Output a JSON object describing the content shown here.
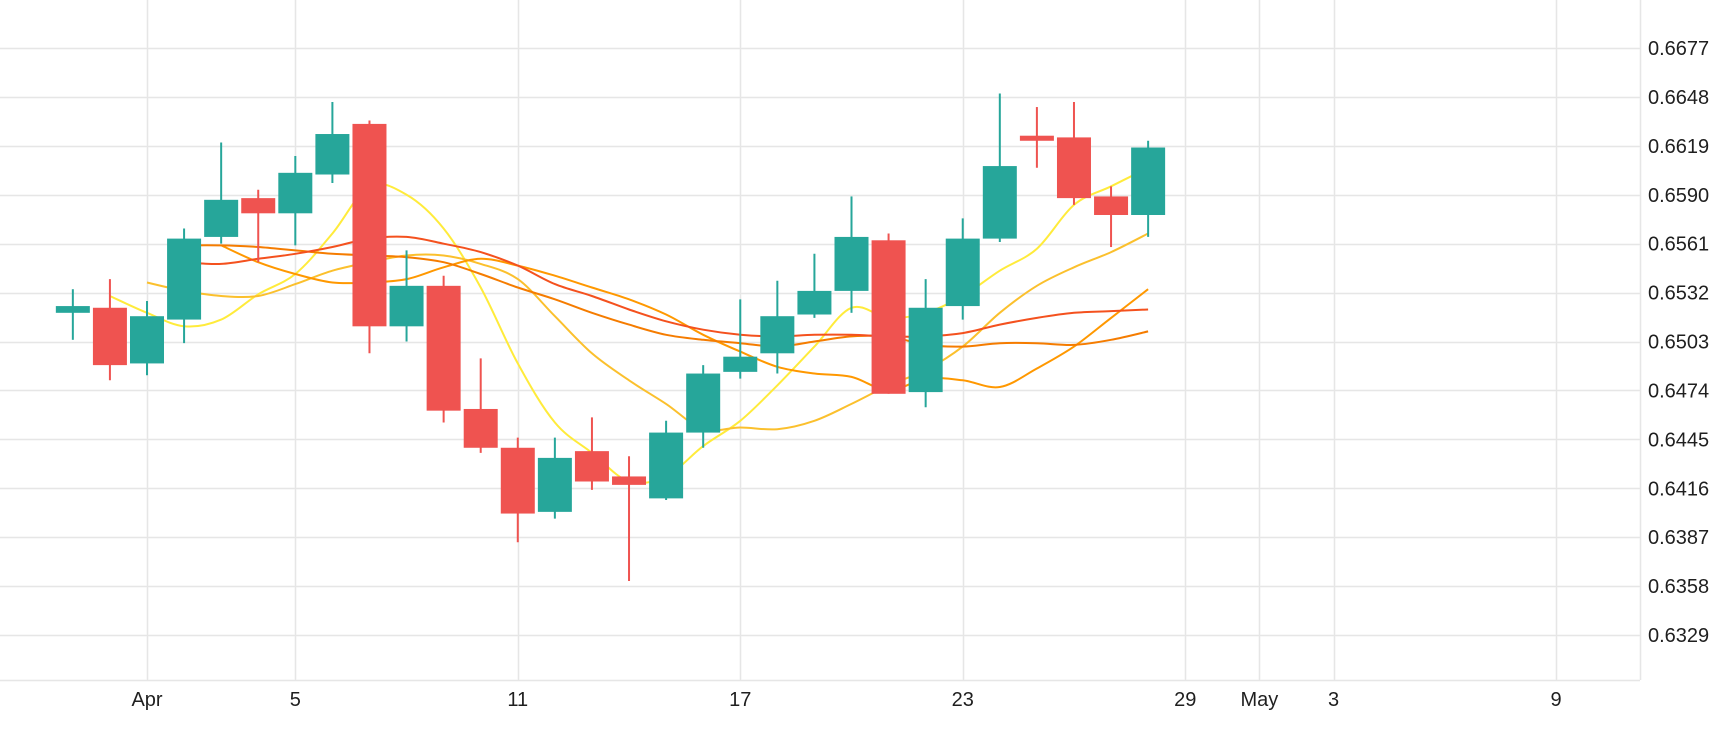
{
  "chart_data": {
    "type": "candlestick",
    "title": "",
    "xlabel": "",
    "ylabel": "",
    "ylim": [
      0.63,
      0.67
    ],
    "y_ticks": [
      0.6329,
      0.6358,
      0.6387,
      0.6416,
      0.6445,
      0.6474,
      0.6503,
      0.6532,
      0.6561,
      0.659,
      0.6619,
      0.6648,
      0.6677
    ],
    "x_tick_labels": [
      {
        "label": "Apr",
        "date": "2022-04-01"
      },
      {
        "label": "5",
        "date": "2022-04-05"
      },
      {
        "label": "11",
        "date": "2022-04-11"
      },
      {
        "label": "17",
        "date": "2022-04-17"
      },
      {
        "label": "23",
        "date": "2022-04-23"
      },
      {
        "label": "29",
        "date": "2022-04-29"
      },
      {
        "label": "May",
        "date": "2022-05-01"
      },
      {
        "label": "3",
        "date": "2022-05-03"
      },
      {
        "label": "9",
        "date": "2022-05-09"
      }
    ],
    "grid": true,
    "colors": {
      "up": "#26a69a",
      "down": "#ef5350",
      "grid": "#e6e6e6",
      "text": "#1f1f1f"
    },
    "candles": [
      {
        "date": "2022-03-30",
        "open": 0.652,
        "high": 0.6534,
        "low": 0.6504,
        "close": 0.6524
      },
      {
        "date": "2022-03-31",
        "open": 0.6523,
        "high": 0.654,
        "low": 0.648,
        "close": 0.6489
      },
      {
        "date": "2022-04-01",
        "open": 0.649,
        "high": 0.6527,
        "low": 0.6483,
        "close": 0.6518
      },
      {
        "date": "2022-04-02",
        "open": 0.6516,
        "high": 0.657,
        "low": 0.6502,
        "close": 0.6564
      },
      {
        "date": "2022-04-03",
        "open": 0.6565,
        "high": 0.6621,
        "low": 0.6561,
        "close": 0.6587
      },
      {
        "date": "2022-04-04",
        "open": 0.6588,
        "high": 0.6593,
        "low": 0.655,
        "close": 0.6579
      },
      {
        "date": "2022-04-05",
        "open": 0.6579,
        "high": 0.6613,
        "low": 0.656,
        "close": 0.6603
      },
      {
        "date": "2022-04-06",
        "open": 0.6602,
        "high": 0.6645,
        "low": 0.6597,
        "close": 0.6626
      },
      {
        "date": "2022-04-07",
        "open": 0.6632,
        "high": 0.6634,
        "low": 0.6496,
        "close": 0.6512
      },
      {
        "date": "2022-04-08",
        "open": 0.6512,
        "high": 0.6557,
        "low": 0.6503,
        "close": 0.6536
      },
      {
        "date": "2022-04-09",
        "open": 0.6536,
        "high": 0.6542,
        "low": 0.6455,
        "close": 0.6462
      },
      {
        "date": "2022-04-10",
        "open": 0.6463,
        "high": 0.6493,
        "low": 0.6437,
        "close": 0.644
      },
      {
        "date": "2022-04-11",
        "open": 0.644,
        "high": 0.6446,
        "low": 0.6384,
        "close": 0.6401
      },
      {
        "date": "2022-04-12",
        "open": 0.6402,
        "high": 0.6446,
        "low": 0.6398,
        "close": 0.6434
      },
      {
        "date": "2022-04-13",
        "open": 0.6438,
        "high": 0.6458,
        "low": 0.6415,
        "close": 0.642
      },
      {
        "date": "2022-04-14",
        "open": 0.6423,
        "high": 0.6435,
        "low": 0.6361,
        "close": 0.6418
      },
      {
        "date": "2022-04-15",
        "open": 0.641,
        "high": 0.6456,
        "low": 0.6409,
        "close": 0.6449
      },
      {
        "date": "2022-04-16",
        "open": 0.6449,
        "high": 0.6489,
        "low": 0.644,
        "close": 0.6484
      },
      {
        "date": "2022-04-17",
        "open": 0.6485,
        "high": 0.6528,
        "low": 0.6481,
        "close": 0.6494
      },
      {
        "date": "2022-04-18",
        "open": 0.6496,
        "high": 0.6539,
        "low": 0.6484,
        "close": 0.6518
      },
      {
        "date": "2022-04-19",
        "open": 0.6519,
        "high": 0.6555,
        "low": 0.6517,
        "close": 0.6533
      },
      {
        "date": "2022-04-20",
        "open": 0.6533,
        "high": 0.6589,
        "low": 0.652,
        "close": 0.6565
      },
      {
        "date": "2022-04-21",
        "open": 0.6563,
        "high": 0.6567,
        "low": 0.6472,
        "close": 0.6472
      },
      {
        "date": "2022-04-22",
        "open": 0.6473,
        "high": 0.654,
        "low": 0.6464,
        "close": 0.6523
      },
      {
        "date": "2022-04-23",
        "open": 0.6524,
        "high": 0.6576,
        "low": 0.6516,
        "close": 0.6564
      },
      {
        "date": "2022-04-24",
        "open": 0.6564,
        "high": 0.665,
        "low": 0.6562,
        "close": 0.6607
      },
      {
        "date": "2022-04-25",
        "open": 0.6625,
        "high": 0.6642,
        "low": 0.6606,
        "close": 0.6622
      },
      {
        "date": "2022-04-26",
        "open": 0.6624,
        "high": 0.6645,
        "low": 0.6584,
        "close": 0.6588
      },
      {
        "date": "2022-04-27",
        "open": 0.6589,
        "high": 0.6595,
        "low": 0.6559,
        "close": 0.6578
      },
      {
        "date": "2022-04-28",
        "open": 0.6578,
        "high": 0.6622,
        "low": 0.6565,
        "close": 0.6618
      }
    ],
    "series": [
      {
        "color": "#ffeb3b",
        "values": [
          0.653,
          0.652,
          0.6512,
          0.6516,
          0.6531,
          0.6543,
          0.6567,
          0.6595,
          0.659,
          0.657,
          0.6535,
          0.649,
          0.6455,
          0.6437,
          0.642,
          0.6423,
          0.6441,
          0.6456,
          0.6477,
          0.65,
          0.6523,
          0.6517,
          0.652,
          0.653,
          0.6545,
          0.6558,
          0.6584,
          0.6595,
          0.6606
        ]
      },
      {
        "color": "#fbc02d",
        "values": [
          0.6538,
          0.6533,
          0.653,
          0.653,
          0.6537,
          0.6545,
          0.655,
          0.6554,
          0.6554,
          0.6549,
          0.654,
          0.6518,
          0.6496,
          0.648,
          0.6466,
          0.6451,
          0.6452,
          0.6451,
          0.6456,
          0.6466,
          0.6477,
          0.6486,
          0.65,
          0.652,
          0.6536,
          0.6547,
          0.6556,
          0.6567
        ]
      },
      {
        "color": "#ff9800",
        "values": [
          0.656,
          0.655,
          0.6543,
          0.6538,
          0.6538,
          0.654,
          0.6547,
          0.6552,
          0.6548,
          0.6542,
          0.6535,
          0.6528,
          0.6519,
          0.6507,
          0.6497,
          0.6488,
          0.6484,
          0.6482,
          0.6474,
          0.6481,
          0.648,
          0.6476,
          0.6487,
          0.65,
          0.6517,
          0.6534
        ]
      },
      {
        "color": "#f57c00",
        "values": [
          0.656,
          0.656,
          0.6559,
          0.6557,
          0.6555,
          0.6554,
          0.6553,
          0.655,
          0.6543,
          0.6535,
          0.6528,
          0.652,
          0.6513,
          0.6507,
          0.6504,
          0.6502,
          0.65,
          0.6503,
          0.6506,
          0.6506,
          0.6501,
          0.65,
          0.6502,
          0.6502,
          0.6501,
          0.6504,
          0.6509
        ]
      },
      {
        "color": "#f4511e",
        "values": [
          0.655,
          0.6549,
          0.6552,
          0.6555,
          0.6559,
          0.6564,
          0.6565,
          0.6561,
          0.6556,
          0.6548,
          0.6537,
          0.653,
          0.6522,
          0.6515,
          0.651,
          0.6507,
          0.6506,
          0.6507,
          0.6507,
          0.6506,
          0.6506,
          0.6508,
          0.6513,
          0.6517,
          0.652,
          0.6521,
          0.6522
        ]
      }
    ]
  }
}
